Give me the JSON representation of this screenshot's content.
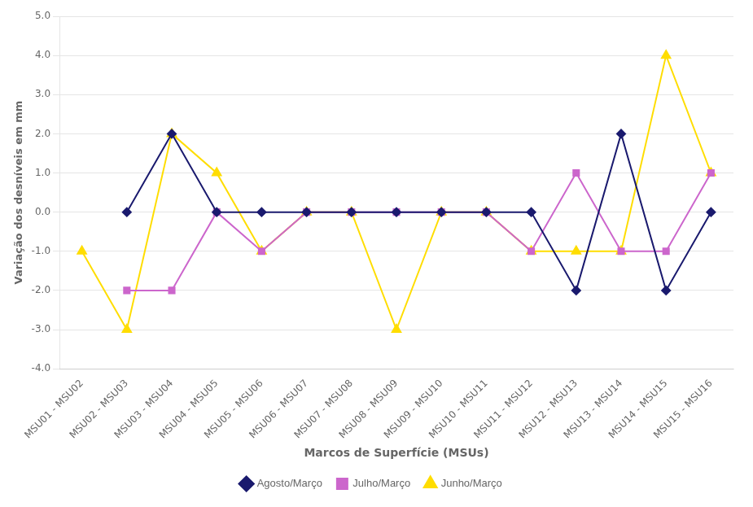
{
  "chart_data": {
    "type": "line",
    "categories": [
      "MSU01 - MSU02",
      "MSU02 - MSU03",
      "MSU03 - MSU04",
      "MSU04 - MSU05",
      "MSU05 - MSU06",
      "MSU06 - MSU07",
      "MSU07 - MSU08",
      "MSU08 - MSU09",
      "MSU09 - MSU10",
      "MSU10 - MSU11",
      "MSU11 - MSU12",
      "MSU12 - MSU13",
      "MSU13 - MSU14",
      "MSU14 - MSU15",
      "MSU15 - MSU16"
    ],
    "series": [
      {
        "name": "Agosto/Março",
        "color": "#1a1a6e",
        "marker": "diamond",
        "values": [
          null,
          0.0,
          2.0,
          0.0,
          0.0,
          0.0,
          0.0,
          0.0,
          0.0,
          0.0,
          0.0,
          -2.0,
          2.0,
          -2.0,
          0.0
        ]
      },
      {
        "name": "Julho/Março",
        "color": "#cc66cc",
        "marker": "square",
        "values": [
          null,
          -2.0,
          -2.0,
          0.0,
          -1.0,
          0.0,
          0.0,
          0.0,
          0.0,
          0.0,
          -1.0,
          1.0,
          -1.0,
          -1.0,
          1.0
        ]
      },
      {
        "name": "Junho/Março",
        "color": "#ffdd00",
        "marker": "triangle",
        "values": [
          -1.0,
          -3.0,
          2.0,
          1.0,
          -1.0,
          0.0,
          0.0,
          -3.0,
          0.0,
          0.0,
          -1.0,
          -1.0,
          -1.0,
          4.0,
          1.0
        ]
      }
    ],
    "xlabel": "Marcos de Superfície (MSUs)",
    "ylabel": "Variação dos desníveis em mm",
    "ylim": [
      -4.0,
      5.0
    ],
    "yticks": [
      {
        "value": -4,
        "label": "-4.0"
      },
      {
        "value": -3,
        "label": "-3.0"
      },
      {
        "value": -2,
        "label": "-2.0"
      },
      {
        "value": -1,
        "label": "-1.0"
      },
      {
        "value": 0,
        "label": "0.0"
      },
      {
        "value": 1,
        "label": "1.0"
      },
      {
        "value": 2,
        "label": "2.0"
      },
      {
        "value": 3,
        "label": "3.0"
      },
      {
        "value": 4,
        "label": "4.0"
      },
      {
        "value": 5,
        "label": "5.0"
      }
    ],
    "grid": true,
    "legend": "bottom"
  }
}
